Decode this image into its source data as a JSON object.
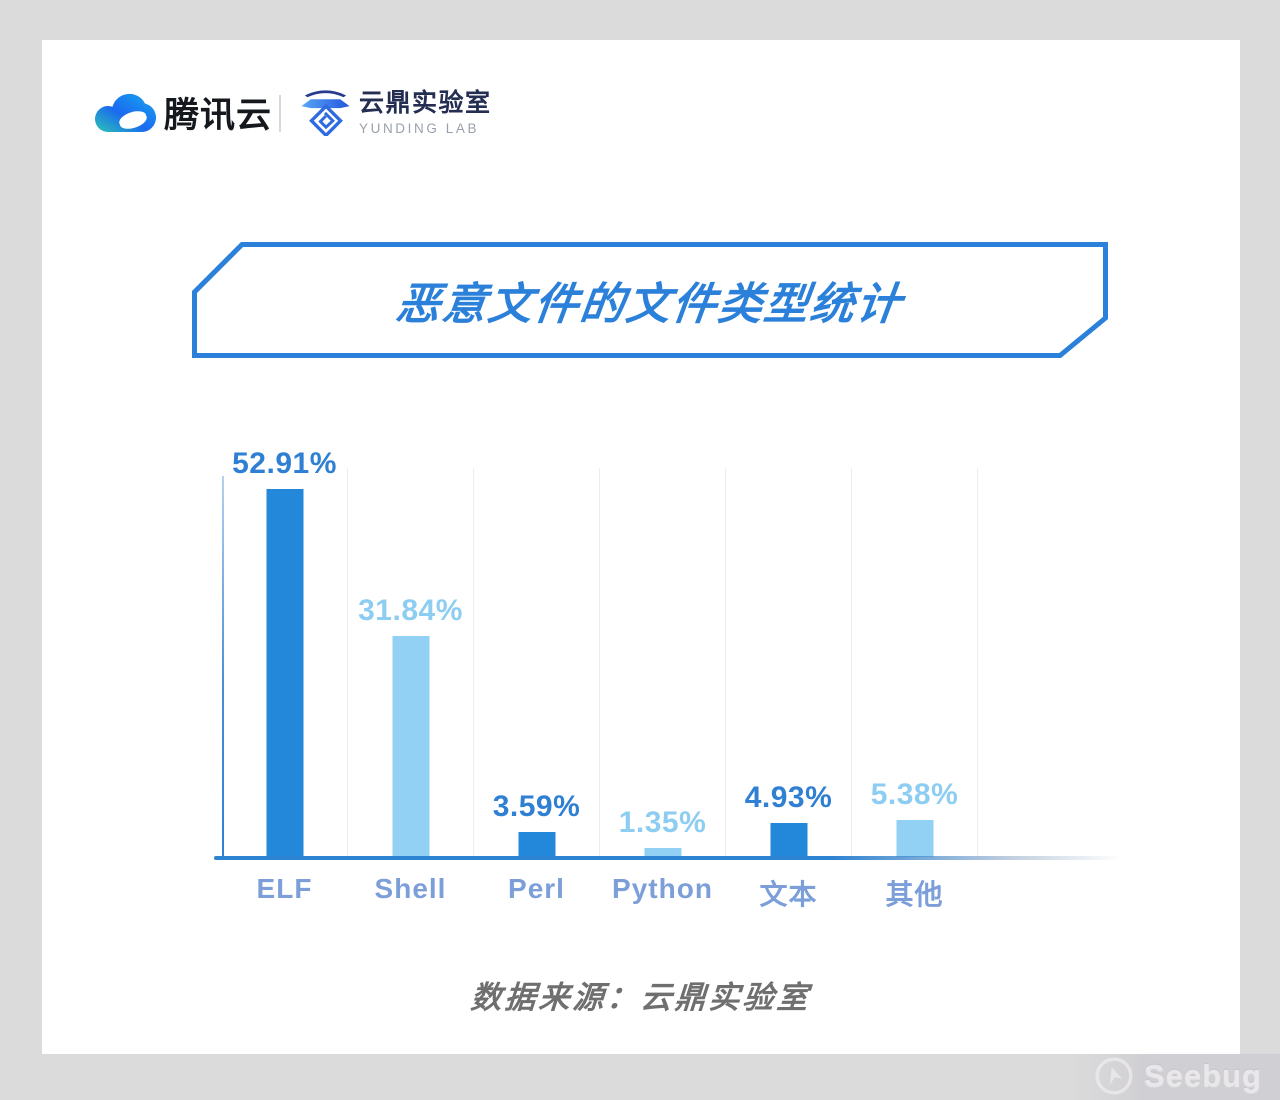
{
  "theme": {
    "page-bg": "#dcdbdc",
    "card-bg": "#ffffff",
    "accent": "#2b80d9",
    "axis": "#2e82d2",
    "gridline": "#ededee",
    "category-label": "#7c9fd9",
    "source-text": "#6f6f6f"
  },
  "header": {
    "tencent_wordmark": "腾讯云",
    "yunding_title": "云鼎实验室",
    "yunding_subtitle": "YUNDING LAB"
  },
  "banner": {
    "title": "恶意文件的文件类型统计"
  },
  "chart_data": {
    "type": "bar",
    "title": "恶意文件的文件类型统计",
    "categories": [
      "ELF",
      "Shell",
      "Perl",
      "Python",
      "文本",
      "其他"
    ],
    "values": [
      52.91,
      31.84,
      3.59,
      1.35,
      4.93,
      5.38
    ],
    "value_labels": [
      "52.91%",
      "31.84%",
      "3.59%",
      "1.35%",
      "4.93%",
      "5.38%"
    ],
    "unit": "%",
    "ylim": [
      0,
      56
    ],
    "grid": "vertical-separators-only",
    "legend": "none",
    "xlabel": "",
    "ylabel": "",
    "colors": {
      "bar_dark": "#2387da",
      "bar_light": "#92d0f4",
      "value_dark": "#2f7fd3",
      "value_light": "#8ecdf2"
    },
    "source": "数据来源：云鼎实验室"
  },
  "watermark": {
    "text": "Seebug"
  }
}
